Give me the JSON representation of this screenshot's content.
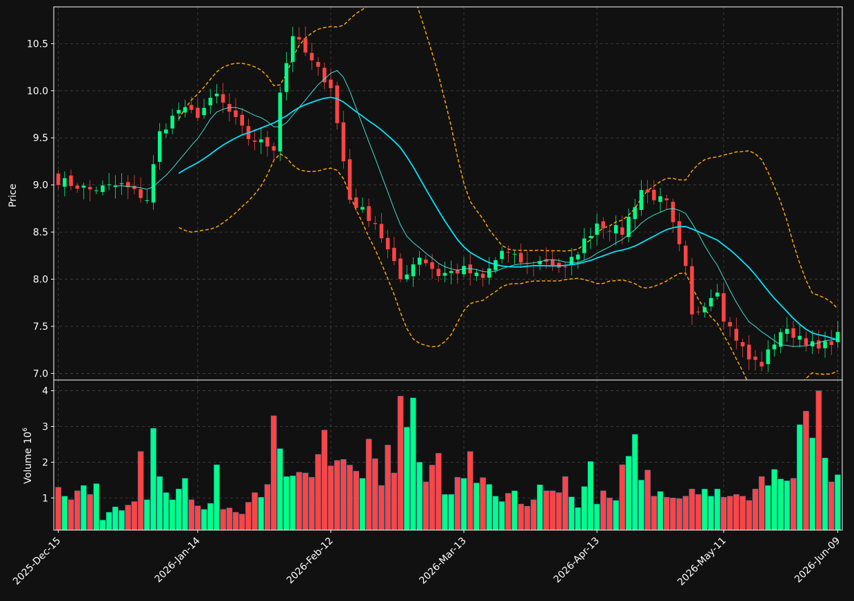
{
  "chart_data": [
    {
      "type": "candlestick",
      "panel": "price",
      "ylabel": "Price",
      "ylim": [
        6.93,
        10.89
      ],
      "yticks": [
        7.0,
        7.5,
        8.0,
        8.5,
        9.0,
        9.5,
        10.0,
        10.5
      ],
      "ytick_labels": [
        "7.0",
        "7.5",
        "8.0",
        "8.5",
        "9.0",
        "9.5",
        "10.0",
        "10.5"
      ],
      "x_start": "2025-12-15",
      "x_end": "2026-06-11",
      "xtick_dates": [
        "2025-12-15",
        "2026-01-14",
        "2026-02-12",
        "2026-03-13",
        "2026-04-13",
        "2026-05-11",
        "2026-06-09"
      ],
      "xtick_labels": [
        "2025-Dec-15",
        "2026-Jan-14",
        "2026-Feb-12",
        "2026-Mar-13",
        "2026-Apr-13",
        "2026-May-11",
        "2026-Jun-09"
      ],
      "grid": true,
      "up_color": "#00ff88",
      "down_color": "#ff4444",
      "ma_short_color": "#40e0d0",
      "ma_long_color": "#00e5ff",
      "band_color": "#ffa500",
      "close_anchors": [
        [
          "2025-12-15",
          9.05
        ],
        [
          "2025-12-22",
          8.95
        ],
        [
          "2025-12-29",
          9.0
        ],
        [
          "2026-01-02",
          8.85
        ],
        [
          "2026-01-06",
          9.55
        ],
        [
          "2026-01-09",
          9.8
        ],
        [
          "2026-01-14",
          9.75
        ],
        [
          "2026-01-19",
          9.95
        ],
        [
          "2026-01-26",
          9.5
        ],
        [
          "2026-01-30",
          9.4
        ],
        [
          "2026-02-02",
          10.0
        ],
        [
          "2026-02-04",
          10.6
        ],
        [
          "2026-02-09",
          10.3
        ],
        [
          "2026-02-12",
          10.05
        ],
        [
          "2026-02-17",
          8.85
        ],
        [
          "2026-02-23",
          8.6
        ],
        [
          "2026-02-27",
          8.0
        ],
        [
          "2026-03-04",
          8.25
        ],
        [
          "2026-03-09",
          8.05
        ],
        [
          "2026-03-13",
          8.1
        ],
        [
          "2026-03-18",
          8.0
        ],
        [
          "2026-03-23",
          8.3
        ],
        [
          "2026-03-27",
          8.15
        ],
        [
          "2026-04-01",
          8.2
        ],
        [
          "2026-04-06",
          8.1
        ],
        [
          "2026-04-13",
          8.6
        ],
        [
          "2026-04-17",
          8.5
        ],
        [
          "2026-04-22",
          8.95
        ],
        [
          "2026-04-28",
          8.8
        ],
        [
          "2026-05-01",
          8.1
        ],
        [
          "2026-05-04",
          7.6
        ],
        [
          "2026-05-08",
          7.9
        ],
        [
          "2026-05-11",
          7.6
        ],
        [
          "2026-05-15",
          7.15
        ],
        [
          "2026-05-19",
          7.1
        ],
        [
          "2026-05-22",
          7.45
        ],
        [
          "2026-05-27",
          7.4
        ],
        [
          "2026-06-01",
          7.25
        ],
        [
          "2026-06-05",
          7.4
        ],
        [
          "2026-06-11",
          7.75
        ]
      ]
    },
    {
      "type": "bar",
      "panel": "volume",
      "ylabel": "Volume",
      "ylabel_exponent": "10",
      "ylabel_exponent_power": "6",
      "ylim": [
        0.1,
        4.3
      ],
      "yticks": [
        1,
        2,
        3,
        4
      ],
      "ytick_labels": [
        "1",
        "2",
        "3",
        "4"
      ],
      "values": [
        1.3,
        1.05,
        0.95,
        1.2,
        1.35,
        1.1,
        1.4,
        0.38,
        0.6,
        0.75,
        0.65,
        0.8,
        0.9,
        2.3,
        0.95,
        2.95,
        1.6,
        1.15,
        0.95,
        1.25,
        1.55,
        0.95,
        0.78,
        0.68,
        0.85,
        1.93,
        0.68,
        0.72,
        0.6,
        0.55,
        0.88,
        1.15,
        1.02,
        1.38,
        3.3,
        2.38,
        1.6,
        1.62,
        1.72,
        1.7,
        1.58,
        2.22,
        2.9,
        1.9,
        2.05,
        2.08,
        1.92,
        1.75,
        1.55,
        2.65,
        2.1,
        1.35,
        2.48,
        1.7,
        3.85,
        2.98,
        3.8,
        2.0,
        1.45,
        1.92,
        2.25,
        1.1,
        1.1,
        1.58,
        1.55,
        2.3,
        1.42,
        1.57,
        1.38,
        1.05,
        0.9,
        1.13,
        1.2,
        0.83,
        0.77,
        0.95,
        1.37,
        1.2,
        1.2,
        1.15,
        1.6,
        1.03,
        0.73,
        1.32,
        2.02,
        0.83,
        1.2,
        1.0,
        0.93,
        1.93,
        2.17,
        2.78,
        1.5,
        1.78,
        1.05,
        1.18,
        1.02,
        1.0,
        0.98,
        1.05,
        1.25,
        1.1,
        1.25,
        1.05,
        1.25,
        1.02,
        1.05,
        1.1,
        1.05,
        0.93,
        1.25,
        1.6,
        1.35,
        1.8,
        1.53,
        1.48,
        1.55,
        3.05,
        3.43,
        2.68,
        4.0,
        2.12,
        1.45,
        1.65
      ]
    }
  ]
}
